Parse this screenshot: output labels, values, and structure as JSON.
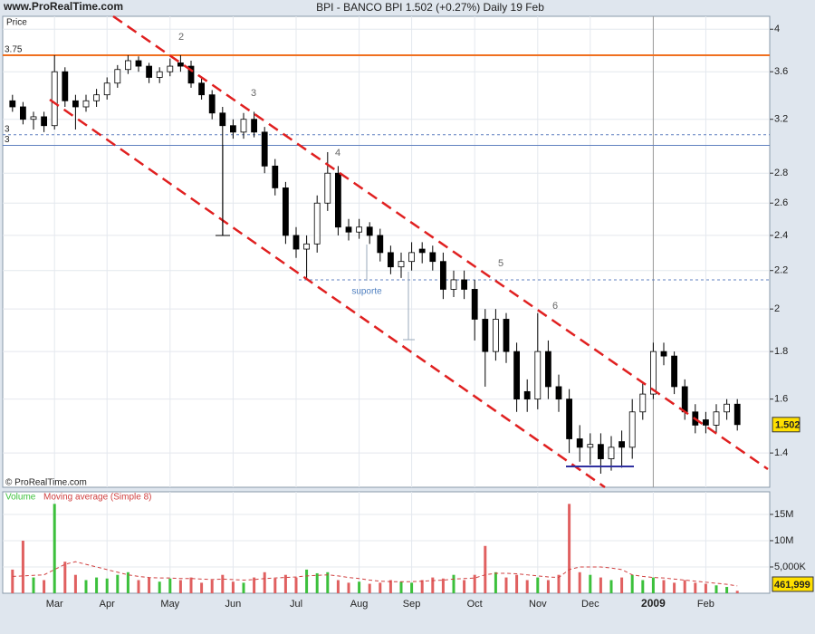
{
  "chart_data": {
    "type": "candlestick",
    "site": "www.ProRealTime.com",
    "title": "BPI - BANCO BPI   1.502 (+0.27%)   Daily  19 Feb",
    "y_label": "Price",
    "copyright": "© ProRealTime.com",
    "wave_labels": [
      "2",
      "3",
      "4",
      "5",
      "6"
    ],
    "support_label": "suporte",
    "log_scale": true,
    "grid": true,
    "up_color": "#ffffff",
    "down_color": "#000000",
    "ylim": [
      1.286,
      4.13
    ],
    "yticks": [
      1.4,
      1.6,
      1.8,
      2,
      2.2,
      2.4,
      2.6,
      2.8,
      3.2,
      3.6,
      4
    ],
    "levels": [
      {
        "value": 3.75,
        "label": "3.75",
        "color": "#f07020",
        "style": "solid"
      },
      {
        "value": 3.08,
        "label": "3",
        "color": "#6080c0",
        "style": "dotted"
      },
      {
        "value": 3.0,
        "label": "3",
        "color": "#6080c0",
        "style": "solid"
      },
      {
        "value": 2.15,
        "color": "#6080c0",
        "style": "dotted"
      }
    ],
    "categories": [
      null,
      null,
      null,
      null,
      "Mar",
      null,
      null,
      null,
      null,
      "Apr",
      null,
      null,
      null,
      null,
      null,
      "May",
      null,
      null,
      null,
      null,
      null,
      "Jun",
      null,
      null,
      null,
      null,
      null,
      "Jul",
      null,
      null,
      null,
      null,
      null,
      "Aug",
      null,
      null,
      null,
      null,
      "Sep",
      null,
      null,
      null,
      null,
      null,
      "Oct",
      null,
      null,
      null,
      null,
      null,
      "Nov",
      null,
      null,
      null,
      null,
      "Dec",
      null,
      null,
      null,
      null,
      null,
      "2009",
      null,
      null,
      null,
      null,
      "Feb",
      null,
      null,
      null
    ],
    "open": [
      3.35,
      3.3,
      3.2,
      3.22,
      3.15,
      3.6,
      3.35,
      3.3,
      3.35,
      3.4,
      3.5,
      3.62,
      3.7,
      3.65,
      3.55,
      3.6,
      3.68,
      3.65,
      3.5,
      3.4,
      3.25,
      3.15,
      3.1,
      3.2,
      3.1,
      2.85,
      2.7,
      2.4,
      2.32,
      2.35,
      2.6,
      2.8,
      2.45,
      2.42,
      2.45,
      2.4,
      2.3,
      2.22,
      2.25,
      2.32,
      2.3,
      2.25,
      2.1,
      2.15,
      2.1,
      1.95,
      1.8,
      1.95,
      1.8,
      1.63,
      1.6,
      1.8,
      1.65,
      1.6,
      1.45,
      1.42,
      1.43,
      1.38,
      1.44,
      1.42,
      1.55,
      1.62,
      1.8,
      1.78,
      1.65,
      1.55,
      1.52,
      1.5,
      1.55,
      1.58
    ],
    "high": [
      3.4,
      3.34,
      3.26,
      3.26,
      3.75,
      3.64,
      3.4,
      3.4,
      3.45,
      3.55,
      3.66,
      3.75,
      3.74,
      3.68,
      3.64,
      3.72,
      3.75,
      3.7,
      3.54,
      3.44,
      3.3,
      3.2,
      3.25,
      3.26,
      3.14,
      2.9,
      2.74,
      2.45,
      2.4,
      2.65,
      2.95,
      2.85,
      2.5,
      2.5,
      2.48,
      2.44,
      2.34,
      2.3,
      2.36,
      2.36,
      2.34,
      2.3,
      2.2,
      2.2,
      2.15,
      2.0,
      2.0,
      1.98,
      1.84,
      1.68,
      1.98,
      1.85,
      1.7,
      1.64,
      1.5,
      1.47,
      1.47,
      1.46,
      1.48,
      1.6,
      1.67,
      1.84,
      1.84,
      1.8,
      1.68,
      1.58,
      1.55,
      1.58,
      1.6,
      1.6
    ],
    "low": [
      3.26,
      3.16,
      3.12,
      3.1,
      3.12,
      3.3,
      3.12,
      3.26,
      3.3,
      3.36,
      3.46,
      3.58,
      3.6,
      3.5,
      3.5,
      3.56,
      3.6,
      3.46,
      3.36,
      3.2,
      2.4,
      3.05,
      3.05,
      3.06,
      2.8,
      2.65,
      2.35,
      2.27,
      2.15,
      2.3,
      2.55,
      2.4,
      2.37,
      2.38,
      2.35,
      2.25,
      2.18,
      2.16,
      2.2,
      2.24,
      2.2,
      2.05,
      2.06,
      2.05,
      1.85,
      1.65,
      1.76,
      1.75,
      1.55,
      1.55,
      1.56,
      1.6,
      1.55,
      1.4,
      1.37,
      1.36,
      1.33,
      1.34,
      1.35,
      1.38,
      1.52,
      1.6,
      1.74,
      1.62,
      1.52,
      1.47,
      1.47,
      1.47,
      1.52,
      1.48
    ],
    "close": [
      3.3,
      3.2,
      3.22,
      3.15,
      3.6,
      3.35,
      3.3,
      3.35,
      3.4,
      3.5,
      3.62,
      3.7,
      3.65,
      3.55,
      3.6,
      3.65,
      3.65,
      3.5,
      3.4,
      3.25,
      3.15,
      3.1,
      3.2,
      3.1,
      2.85,
      2.7,
      2.4,
      2.32,
      2.35,
      2.6,
      2.8,
      2.45,
      2.42,
      2.45,
      2.4,
      2.3,
      2.22,
      2.25,
      2.3,
      2.3,
      2.25,
      2.1,
      2.15,
      2.1,
      1.95,
      1.8,
      1.95,
      1.8,
      1.6,
      1.6,
      1.8,
      1.65,
      1.6,
      1.45,
      1.42,
      1.43,
      1.38,
      1.42,
      1.42,
      1.55,
      1.62,
      1.8,
      1.78,
      1.65,
      1.55,
      1.5,
      1.5,
      1.55,
      1.58,
      1.502
    ],
    "volume": {
      "legend": "Volume",
      "ma_legend": "Moving average (Simple 8)",
      "up_color": "#3cc03c",
      "down_color": "#e06060",
      "ma_color": "#d04040",
      "ylim": [
        0,
        19300000
      ],
      "yticks": [
        {
          "value": 5000000,
          "label": "5,000K"
        },
        {
          "value": 10000000,
          "label": "10M"
        },
        {
          "value": 15000000,
          "label": "15M"
        }
      ],
      "values": [
        4500000,
        10000000,
        3000000,
        2500000,
        17000000,
        6000000,
        3500000,
        2500000,
        3000000,
        2800000,
        3500000,
        4000000,
        2500000,
        3000000,
        2200000,
        2800000,
        2500000,
        3000000,
        2000000,
        2500000,
        3500000,
        2200000,
        2000000,
        3000000,
        4000000,
        2800000,
        3500000,
        3000000,
        4500000,
        3800000,
        4000000,
        2500000,
        2000000,
        2200000,
        1800000,
        2000000,
        2500000,
        2200000,
        2000000,
        2500000,
        3000000,
        2800000,
        3500000,
        2500000,
        3500000,
        9000000,
        4000000,
        3000000,
        3500000,
        2500000,
        3000000,
        2500000,
        3500000,
        17000000,
        4000000,
        3500000,
        3000000,
        2500000,
        3000000,
        3500000,
        2500000,
        3000000,
        2500000,
        2000000,
        2500000,
        2000000,
        1800000,
        1500000,
        1200000,
        461999
      ],
      "value_labels": [
        null,
        null,
        null,
        null,
        null,
        null,
        null,
        null,
        null,
        null,
        null,
        null,
        null,
        null,
        null,
        null,
        null,
        null,
        null,
        null,
        null,
        null,
        null,
        null,
        null,
        null,
        null,
        null,
        null,
        null,
        null,
        null,
        null,
        null,
        null,
        null,
        null,
        null,
        null,
        null,
        null,
        null,
        null,
        null,
        null,
        null,
        null,
        null,
        null,
        null,
        null,
        null,
        null,
        null,
        null,
        null,
        null,
        null,
        null,
        null,
        null,
        null,
        null,
        null,
        null,
        null,
        null,
        null,
        null,
        "461,999"
      ],
      "ma": [
        3200000,
        3300000,
        3400000,
        3500000,
        4500000,
        5500000,
        6000000,
        5500000,
        5000000,
        4500000,
        4000000,
        3500000,
        3200000,
        3000000,
        2900000,
        2900000,
        2800000,
        2800000,
        2700000,
        2600000,
        2700000,
        2600000,
        2500000,
        2600000,
        2800000,
        2900000,
        3000000,
        3100000,
        3300000,
        3400000,
        3500000,
        3300000,
        3000000,
        2800000,
        2500000,
        2300000,
        2200000,
        2200000,
        2200000,
        2300000,
        2400000,
        2500000,
        2700000,
        2800000,
        2900000,
        3500000,
        3800000,
        3800000,
        3700000,
        3500000,
        3300000,
        3100000,
        3000000,
        4500000,
        5000000,
        5000000,
        5000000,
        4800000,
        4500000,
        3500000,
        3200000,
        3000000,
        2900000,
        2700000,
        2500000,
        2300000,
        2100000,
        1900000,
        1700000,
        1400000
      ]
    }
  }
}
